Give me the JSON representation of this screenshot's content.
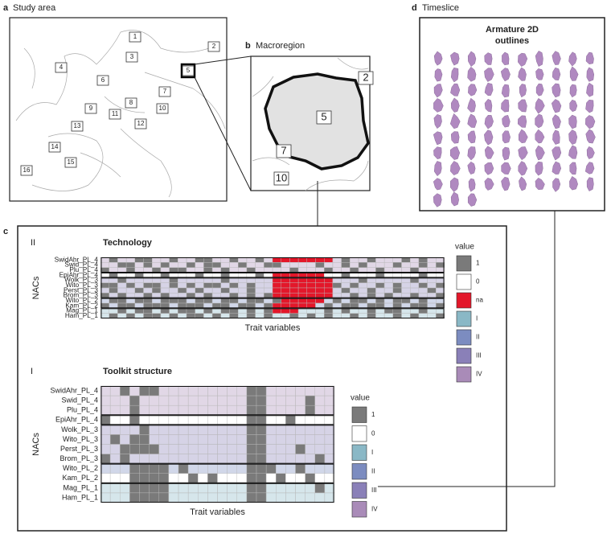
{
  "panel_a": {
    "letter": "a",
    "title": "Study area",
    "regions": [
      "1",
      "2",
      "3",
      "4",
      "5",
      "6",
      "7",
      "8",
      "9",
      "10",
      "11",
      "12",
      "13",
      "14",
      "15",
      "16"
    ]
  },
  "panel_b": {
    "letter": "b",
    "title": "Macroregion",
    "regions": [
      "2",
      "5",
      "7",
      "10"
    ]
  },
  "panel_c": {
    "letter": "c",
    "technology": {
      "phase_label": "II",
      "title": "Technology",
      "y_label": "NACs",
      "x_label": "Trait variables",
      "legend_title": "value",
      "legend": [
        {
          "label": "1",
          "color": "#7a7a7a"
        },
        {
          "label": "0",
          "color": "#ffffff"
        },
        {
          "label": "na",
          "color": "#e3172a"
        },
        {
          "label": "I",
          "color": "#8ab8c6"
        },
        {
          "label": "II",
          "color": "#7c8cc0"
        },
        {
          "label": "III",
          "color": "#8a80b8"
        },
        {
          "label": "IV",
          "color": "#a98bb8"
        }
      ],
      "rows": [
        "SwidAhr_PL_4",
        "Swid_PL_4",
        "Plu_PL_4",
        "EpiAhr_PL_4",
        "Wolk_PL_3",
        "Wito_PL_3",
        "Perst_PL_3",
        "Brom_PL_3",
        "Wito_PL_2",
        "Kam_PL_2",
        "Mag_PL_1",
        "Ham_PL_1"
      ],
      "cells": [
        [
          "IV",
          "1",
          "IV",
          "IV",
          "1",
          "1",
          "IV",
          "IV",
          "1",
          "IV",
          "IV",
          "1",
          "1",
          "IV",
          "IV",
          "1",
          "IV",
          "IV",
          "1",
          "IV",
          "na",
          "na",
          "na",
          "na",
          "na",
          "na",
          "na",
          "IV",
          "1",
          "IV",
          "IV",
          "1",
          "IV",
          "IV",
          "IV",
          "1",
          "IV",
          "1",
          "IV",
          "IV"
        ],
        [
          "IV",
          "IV",
          "1",
          "1",
          "IV",
          "1",
          "IV",
          "1",
          "IV",
          "IV",
          "1",
          "IV",
          "1",
          "1",
          "IV",
          "IV",
          "1",
          "IV",
          "IV",
          "1",
          "1",
          "IV",
          "IV",
          "IV",
          "IV",
          "1",
          "IV",
          "IV",
          "1",
          "IV",
          "1",
          "IV",
          "IV",
          "IV",
          "1",
          "IV",
          "IV",
          "1",
          "IV",
          "1"
        ],
        [
          "1",
          "IV",
          "IV",
          "1",
          "IV",
          "IV",
          "1",
          "IV",
          "1",
          "1",
          "IV",
          "IV",
          "1",
          "IV",
          "1",
          "IV",
          "IV",
          "1",
          "IV",
          "IV",
          "IV",
          "IV",
          "1",
          "IV",
          "IV",
          "IV",
          "1",
          "IV",
          "IV",
          "1",
          "IV",
          "IV",
          "1",
          "IV",
          "IV",
          "IV",
          "1",
          "IV",
          "IV",
          "IV"
        ],
        [
          "0",
          "1",
          "0",
          "0",
          "1",
          "0",
          "0",
          "1",
          "0",
          "0",
          "0",
          "1",
          "0",
          "0",
          "1",
          "0",
          "0",
          "0",
          "1",
          "0",
          "na",
          "na",
          "na",
          "na",
          "na",
          "na",
          "0",
          "0",
          "1",
          "0",
          "0",
          "0",
          "1",
          "0",
          "0",
          "0",
          "0",
          "1",
          "0",
          "0"
        ],
        [
          "III",
          "III",
          "1",
          "III",
          "III",
          "III",
          "III",
          "III",
          "1",
          "III",
          "III",
          "III",
          "III",
          "III",
          "1",
          "III",
          "III",
          "III",
          "III",
          "III",
          "na",
          "na",
          "na",
          "na",
          "na",
          "na",
          "na",
          "III",
          "III",
          "III",
          "1",
          "III",
          "III",
          "III",
          "III",
          "III",
          "1",
          "III",
          "III",
          "III"
        ],
        [
          "1",
          "1",
          "III",
          "1",
          "III",
          "1",
          "1",
          "III",
          "1",
          "III",
          "1",
          "III",
          "1",
          "1",
          "III",
          "1",
          "III",
          "1",
          "III",
          "III",
          "na",
          "na",
          "na",
          "na",
          "na",
          "na",
          "na",
          "1",
          "III",
          "1",
          "III",
          "III",
          "1",
          "III",
          "1",
          "III",
          "III",
          "1",
          "III",
          "1"
        ],
        [
          "III",
          "1",
          "III",
          "III",
          "1",
          "III",
          "1",
          "III",
          "III",
          "1",
          "III",
          "1",
          "III",
          "III",
          "1",
          "III",
          "III",
          "1",
          "III",
          "III",
          "na",
          "na",
          "na",
          "na",
          "na",
          "na",
          "na",
          "III",
          "1",
          "III",
          "III",
          "1",
          "III",
          "III",
          "1",
          "III",
          "III",
          "III",
          "1",
          "III"
        ],
        [
          "1",
          "III",
          "1",
          "III",
          "III",
          "1",
          "III",
          "1",
          "III",
          "III",
          "1",
          "III",
          "1",
          "III",
          "III",
          "1",
          "III",
          "1",
          "III",
          "1",
          "na",
          "na",
          "na",
          "na",
          "na",
          "na",
          "na",
          "III",
          "III",
          "1",
          "III",
          "1",
          "III",
          "1",
          "III",
          "III",
          "1",
          "III",
          "III",
          "1"
        ],
        [
          "II",
          "1",
          "1",
          "II",
          "1",
          "1",
          "II",
          "1",
          "1",
          "1",
          "II",
          "1",
          "1",
          "II",
          "1",
          "1",
          "II",
          "1",
          "1",
          "II",
          "1",
          "na",
          "na",
          "na",
          "na",
          "na",
          "II",
          "1",
          "II",
          "1",
          "1",
          "II",
          "1",
          "II",
          "1",
          "1",
          "II",
          "1",
          "II",
          "II"
        ],
        [
          "1",
          "II",
          "1",
          "1",
          "II",
          "1",
          "1",
          "1",
          "II",
          "1",
          "1",
          "1",
          "II",
          "1",
          "1",
          "II",
          "1",
          "1",
          "II",
          "1",
          "na",
          "na",
          "na",
          "na",
          "na",
          "II",
          "1",
          "II",
          "1",
          "1",
          "II",
          "1",
          "1",
          "II",
          "1",
          "II",
          "1",
          "1",
          "II",
          "1"
        ],
        [
          "I",
          "I",
          "1",
          "I",
          "1",
          "1",
          "I",
          "1",
          "I",
          "1",
          "1",
          "I",
          "1",
          "I",
          "1",
          "1",
          "I",
          "1",
          "I",
          "1",
          "na",
          "na",
          "na",
          "I",
          "I",
          "I",
          "1",
          "I",
          "1",
          "I",
          "I",
          "1",
          "I",
          "1",
          "1",
          "I",
          "I",
          "1",
          "I",
          "I"
        ],
        [
          "I",
          "1",
          "I",
          "1",
          "I",
          "1",
          "1",
          "I",
          "1",
          "I",
          "1",
          "1",
          "I",
          "1",
          "I",
          "1",
          "I",
          "1",
          "I",
          "1",
          "I",
          "I",
          "1",
          "I",
          "1",
          "I",
          "1",
          "I",
          "I",
          "1",
          "I",
          "1",
          "I",
          "I",
          "1",
          "I",
          "1",
          "I",
          "I",
          "1"
        ]
      ]
    },
    "toolkit": {
      "phase_label": "I",
      "title": "Toolkit structure",
      "y_label": "NACs",
      "x_label": "Trait variables",
      "legend_title": "value",
      "legend": [
        {
          "label": "1",
          "color": "#7a7a7a"
        },
        {
          "label": "0",
          "color": "#ffffff"
        },
        {
          "label": "I",
          "color": "#8ab8c6"
        },
        {
          "label": "II",
          "color": "#7c8cc0"
        },
        {
          "label": "III",
          "color": "#8a80b8"
        },
        {
          "label": "IV",
          "color": "#a98bb8"
        }
      ],
      "rows": [
        "SwidAhr_PL_4",
        "Swid_PL_4",
        "Plu_PL_4",
        "EpiAhr_PL_4",
        "Wolk_PL_3",
        "Wito_PL_3",
        "Perst_PL_3",
        "Brom_PL_3",
        "Wito_PL_2",
        "Kam_PL_2",
        "Mag_PL_1",
        "Ham_PL_1"
      ],
      "cells": [
        [
          "IV",
          "IV",
          "1",
          "IV",
          "1",
          "1",
          "IV",
          "IV",
          "IV",
          "IV",
          "IV",
          "IV",
          "IV",
          "IV",
          "IV",
          "1",
          "1",
          "IV",
          "IV",
          "IV",
          "IV",
          "IV",
          "IV",
          "IV"
        ],
        [
          "IV",
          "IV",
          "IV",
          "1",
          "IV",
          "IV",
          "IV",
          "IV",
          "IV",
          "IV",
          "IV",
          "IV",
          "IV",
          "IV",
          "IV",
          "1",
          "1",
          "IV",
          "IV",
          "IV",
          "IV",
          "1",
          "IV",
          "IV"
        ],
        [
          "IV",
          "IV",
          "IV",
          "1",
          "IV",
          "IV",
          "IV",
          "IV",
          "IV",
          "IV",
          "IV",
          "IV",
          "IV",
          "IV",
          "IV",
          "1",
          "1",
          "IV",
          "IV",
          "IV",
          "IV",
          "1",
          "IV",
          "IV"
        ],
        [
          "1",
          "0",
          "0",
          "1",
          "0",
          "0",
          "0",
          "0",
          "0",
          "0",
          "0",
          "0",
          "0",
          "0",
          "0",
          "1",
          "1",
          "0",
          "0",
          "1",
          "0",
          "0",
          "0",
          "0"
        ],
        [
          "III",
          "III",
          "III",
          "III",
          "1",
          "III",
          "III",
          "III",
          "III",
          "III",
          "III",
          "III",
          "III",
          "III",
          "III",
          "1",
          "1",
          "III",
          "III",
          "III",
          "III",
          "III",
          "III",
          "III"
        ],
        [
          "III",
          "1",
          "III",
          "1",
          "1",
          "III",
          "III",
          "III",
          "III",
          "III",
          "III",
          "III",
          "III",
          "III",
          "III",
          "1",
          "1",
          "III",
          "III",
          "III",
          "III",
          "III",
          "III",
          "III"
        ],
        [
          "III",
          "III",
          "1",
          "1",
          "1",
          "1",
          "III",
          "III",
          "III",
          "III",
          "III",
          "III",
          "III",
          "III",
          "III",
          "1",
          "1",
          "III",
          "III",
          "III",
          "1",
          "III",
          "III",
          "III"
        ],
        [
          "1",
          "III",
          "1",
          "III",
          "III",
          "III",
          "III",
          "III",
          "III",
          "III",
          "III",
          "III",
          "III",
          "III",
          "III",
          "1",
          "1",
          "III",
          "III",
          "III",
          "III",
          "III",
          "1",
          "III"
        ],
        [
          "II",
          "II",
          "II",
          "1",
          "1",
          "1",
          "1",
          "II",
          "1",
          "II",
          "II",
          "II",
          "II",
          "II",
          "II",
          "1",
          "1",
          "1",
          "II",
          "II",
          "1",
          "II",
          "II",
          "II"
        ],
        [
          "0",
          "0",
          "0",
          "1",
          "1",
          "1",
          "1",
          "0",
          "0",
          "1",
          "0",
          "1",
          "0",
          "0",
          "0",
          "1",
          "1",
          "0",
          "1",
          "0",
          "0",
          "1",
          "0",
          "0"
        ],
        [
          "I",
          "I",
          "I",
          "1",
          "1",
          "1",
          "1",
          "I",
          "I",
          "I",
          "I",
          "I",
          "I",
          "I",
          "I",
          "1",
          "1",
          "I",
          "I",
          "I",
          "I",
          "I",
          "1",
          "I"
        ],
        [
          "I",
          "I",
          "I",
          "1",
          "1",
          "1",
          "1",
          "I",
          "I",
          "I",
          "I",
          "I",
          "I",
          "I",
          "I",
          "1",
          "1",
          "I",
          "I",
          "I",
          "I",
          "I",
          "I",
          "I"
        ]
      ]
    }
  },
  "panel_d": {
    "letter": "d",
    "title": "Timeslice",
    "heading": [
      "Armature 2D",
      "outlines"
    ]
  }
}
